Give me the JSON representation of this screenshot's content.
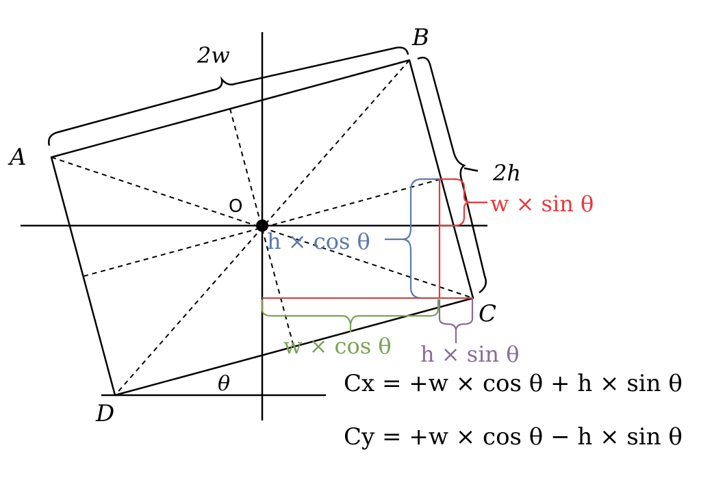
{
  "colors": {
    "black": "#000000",
    "red": "#e8383a",
    "blue": "#5b7aa8",
    "green": "#77a356",
    "purple": "#8a6b9a",
    "brown_red": "#b8514e"
  },
  "points": {
    "A": "A",
    "B": "B",
    "C": "C",
    "D": "D",
    "O": "O"
  },
  "angle_label": "θ",
  "dimension_labels": {
    "width": "2w",
    "height": "2h"
  },
  "component_labels": {
    "w_sin": "w × sin θ",
    "h_cos": "h × cos θ",
    "w_cos": "w × cos θ",
    "h_sin": "h × sin θ"
  },
  "equations": {
    "cx": "Cx = +w × cos θ + h × sin θ",
    "cy": "Cy = +w × cos θ − h × sin θ"
  }
}
